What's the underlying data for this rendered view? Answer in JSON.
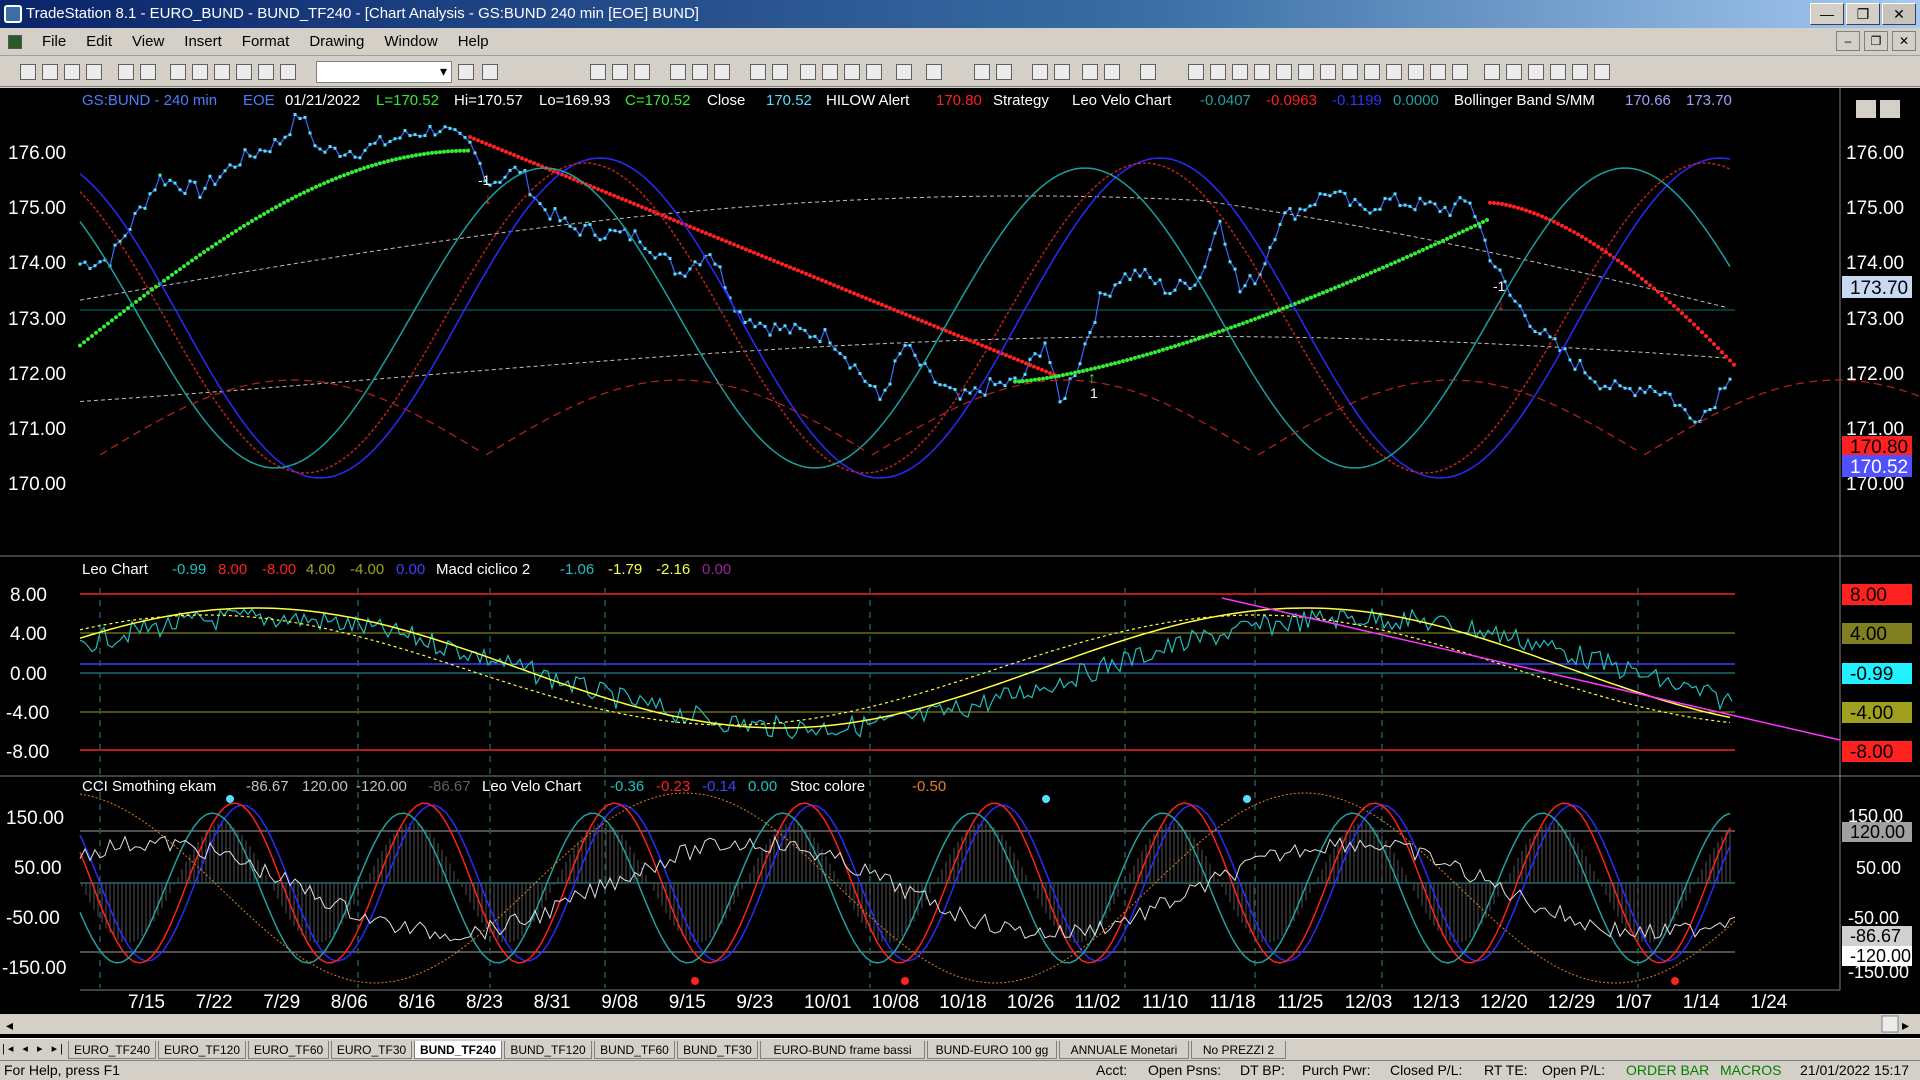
{
  "window": {
    "title": "TradeStation 8.1 - EURO_BUND - BUND_TF240 - [Chart Analysis - GS:BUND  240 min  [EOE] BUND]",
    "minimize": "—",
    "restore": "❐",
    "close": "✕"
  },
  "menu": [
    "File",
    "Edit",
    "View",
    "Insert",
    "Format",
    "Drawing",
    "Window",
    "Help"
  ],
  "mdi": {
    "minimize": "–",
    "restore": "❐",
    "close": "✕"
  },
  "header": {
    "symbol": "GS:BUND - 240 min",
    "session": "EOE",
    "date": "01/21/2022",
    "last": "L=170.52",
    "high": "Hi=170.57",
    "low": "Lo=169.93",
    "close_val": "C=170.52",
    "close_label": "Close",
    "close_num": "170.52",
    "hilow_label": "HILOW Alert",
    "hilow_val": "170.80",
    "strategy_label": "Strategy",
    "leovelo_label": "Leo Velo Chart",
    "lv1": "-0.0407",
    "lv2": "-0.0963",
    "lv3": "-0.1199",
    "lv4": "0.0000",
    "bb_label": "Bollinger Band S/MM",
    "bb1": "170.66",
    "bb2": "173.70"
  },
  "price_axis": [
    "176.00",
    "175.00",
    "174.00",
    "173.00",
    "172.00",
    "171.00",
    "170.00"
  ],
  "price_tags": {
    "bb_upper": "173.70",
    "hilow": "170.80",
    "last": "170.52"
  },
  "signals": {
    "short1": "-1",
    "short2": "-1",
    "long1": "1"
  },
  "panel2": {
    "name": "Leo Chart",
    "v1": "-0.99",
    "v2": "8.00",
    "v3": "-8.00",
    "v4": "4.00",
    "v5": "-4.00",
    "v6": "0.00",
    "macd_label": "Macd ciclico 2",
    "m1": "-1.06",
    "m2": "-1.79",
    "m3": "-2.16",
    "m4": "0.00",
    "axis": [
      "8.00",
      "4.00",
      "0.00",
      "-4.00",
      "-8.00"
    ],
    "tags": [
      "8.00",
      "4.00",
      "-0.99",
      "-4.00",
      "-8.00"
    ]
  },
  "panel3": {
    "name": "CCI Smothing ekam",
    "c1": "-86.67",
    "c2": "120.00",
    "c3": "-120.00",
    "c4": "-86.67",
    "lv_label": "Leo Velo Chart",
    "l1": "-0.36",
    "l2": "-0.23",
    "l3": "-0.14",
    "l4": "0.00",
    "stoc_label": "Stoc colore",
    "s1": "-0.50",
    "axis": [
      "150.00",
      "50.00",
      "-50.00",
      "-150.00"
    ],
    "tags": [
      "150.00",
      "120.00",
      "50.00",
      "-50.00",
      "-86.67",
      "-120.00",
      "-150.00"
    ]
  },
  "date_axis": [
    "7/15",
    "7/22",
    "7/29",
    "8/06",
    "8/16",
    "8/23",
    "8/31",
    "9/08",
    "9/15",
    "9/23",
    "10/01",
    "10/08",
    "10/18",
    "10/26",
    "11/02",
    "11/10",
    "11/18",
    "11/25",
    "12/03",
    "12/13",
    "12/20",
    "12/29",
    "1/07",
    "1/14",
    "1/24"
  ],
  "tabs": [
    "EURO_TF240",
    "EURO_TF120",
    "EURO_TF60",
    "EURO_TF30",
    "BUND_TF240",
    "BUND_TF120",
    "BUND_TF60",
    "BUND_TF30",
    "EURO-BUND frame bassi",
    "BUND-EURO 100 gg",
    "ANNUALE Monetari",
    "No PREZZI 2"
  ],
  "active_tab": "BUND_TF240",
  "status": {
    "help": "For Help, press F1",
    "acct": "Acct:",
    "open_psns": "Open Psns:",
    "dt_bp": "DT BP:",
    "purch_pwr": "Purch Pwr:",
    "closed_pl": "Closed P/L:",
    "rt_te": "RT TE:",
    "open_pl": "Open P/L:",
    "order_bar": "ORDER BAR",
    "macros": "MACROS",
    "datetime": "21/01/2022 15:17"
  },
  "colors": {
    "background": "#000000",
    "price": "#55e0ff",
    "hilow_red": "#ff2020",
    "hilow_green": "#33ee33",
    "magenta": "#ff33ff",
    "yellow": "#ffff40"
  }
}
